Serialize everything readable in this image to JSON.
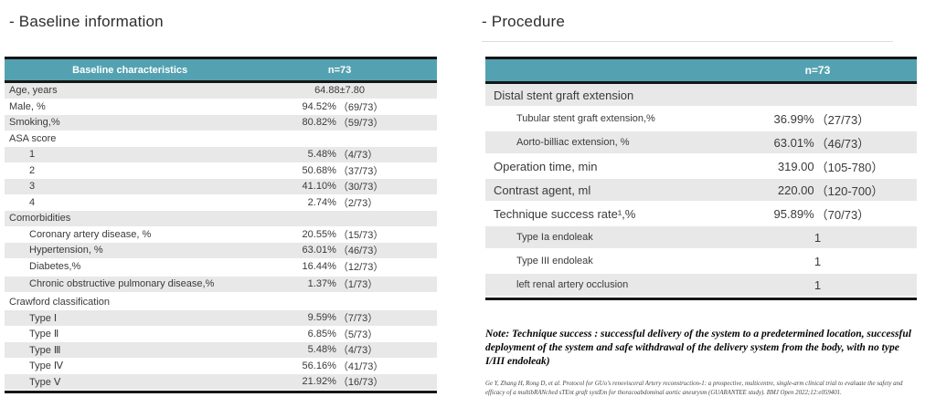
{
  "colors": {
    "teal": "#54a2b1",
    "row_gray": "#e8e8e8",
    "border_black": "#161616",
    "text": "#3a3a3a"
  },
  "left": {
    "title": "- Baseline information",
    "table": {
      "header": {
        "label": "Baseline characteristics",
        "value": "n=73"
      },
      "rows": [
        {
          "label": "Age, years",
          "value": "64.88±7.80"
        },
        {
          "label": "Male, %",
          "pct": "94.52%",
          "paren": "（69/73）"
        },
        {
          "label": "Smoking,%",
          "pct": "80.82%",
          "paren": "（59/73）"
        },
        {
          "label": "ASA score"
        },
        {
          "label": "1",
          "indent": 1,
          "pct": "5.48%",
          "paren": "（4/73）"
        },
        {
          "label": "2",
          "indent": 1,
          "pct": "50.68%",
          "paren": "（37/73）"
        },
        {
          "label": "3",
          "indent": 1,
          "pct": "41.10%",
          "paren": "（30/73）"
        },
        {
          "label": "4",
          "indent": 1,
          "pct": "2.74%",
          "paren": "（2/73）"
        },
        {
          "label": "Comorbidities"
        },
        {
          "label": "Coronary artery disease, %",
          "indent": 1,
          "pct": "20.55%",
          "paren": "（15/73）"
        },
        {
          "label": "Hypertension, %",
          "indent": 1,
          "pct": "63.01%",
          "paren": "（46/73）"
        },
        {
          "label": "Diabetes,%",
          "indent": 1,
          "pct": "16.44%",
          "paren": "（12/73）"
        },
        {
          "label": "Chronic obstructive pulmonary disease,%",
          "indent": 1,
          "tall": true,
          "pct": "1.37%",
          "paren": "（1/73）"
        },
        {
          "label": "Crawford classification"
        },
        {
          "label": "Type Ⅰ",
          "indent": 1,
          "pct": "9.59%",
          "paren": "（7/73）"
        },
        {
          "label": "Type Ⅱ",
          "indent": 1,
          "pct": "6.85%",
          "paren": "（5/73）"
        },
        {
          "label": "Type Ⅲ",
          "indent": 1,
          "pct": "5.48%",
          "paren": "（4/73）"
        },
        {
          "label": "Type Ⅳ",
          "indent": 1,
          "pct": "56.16%",
          "paren": "（41/73）"
        },
        {
          "label": "Type Ⅴ",
          "indent": 1,
          "pct": "21.92%",
          "paren": "（16/73）"
        }
      ]
    }
  },
  "right": {
    "title": "- Procedure",
    "table": {
      "header": {
        "label": "",
        "value": "n=73"
      },
      "rows": [
        {
          "label": "Distal stent graft extension"
        },
        {
          "label": "Tubular stent graft extension,%",
          "indent": 1,
          "sub": true,
          "pct": "36.99%",
          "paren": "（27/73）"
        },
        {
          "label": "Aorto-billiac extension, %",
          "indent": 1,
          "sub": true,
          "pct": "63.01%",
          "paren": "（46/73）"
        },
        {
          "label": "Operation time, min",
          "pct": "319.00",
          "paren": "（105-780）"
        },
        {
          "label": "Contrast agent, ml",
          "pct": "220.00",
          "paren": "（120-700）"
        },
        {
          "label": "Technique success rate¹,%",
          "pct": "95.89%",
          "paren": "（70/73）"
        },
        {
          "label": "Type Ia endoleak",
          "indent": 1,
          "sub": true,
          "value": "1"
        },
        {
          "label": "Type III endoleak",
          "indent": 1,
          "sub": true,
          "value": "1"
        },
        {
          "label": "left renal artery occlusion",
          "indent": 1,
          "sub": true,
          "value": "1"
        }
      ]
    },
    "note": "Note: Technique success : successful delivery of the system to a predetermined location, successful deployment of the system and safe withdrawal of the delivery system from the body, with no type I/III endoleak)",
    "citation": "Ge Y, Zhang H, Rong D, et al. Protocol for GUo's renovisceral Artery reconstruction-1: a prospective, multicentre, single-arm clinical trial to evaluate the safety and efficacy of a multibRANched sTEnt graft systEm for thoracoabdominal aortic aneurysm (GUARANTEE study). BMJ Open 2022;12:e059401."
  }
}
